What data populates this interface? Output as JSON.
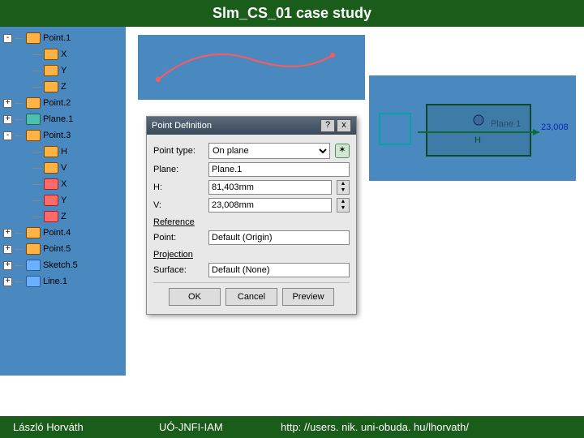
{
  "header": {
    "title": "Slm_CS_01 case study"
  },
  "footer": {
    "author": "László Horváth",
    "org": "UÓ-JNFI-IAM",
    "url": "http: //users. nik. uni-obuda. hu/lhorvath/"
  },
  "tree": {
    "background": "#4a89c0",
    "items": [
      {
        "exp": "-",
        "icon": "orange",
        "label": "Point.1",
        "indent": 0,
        "name": "node-point1"
      },
      {
        "exp": "",
        "icon": "orange",
        "label": "X",
        "indent": 1,
        "name": "node-x"
      },
      {
        "exp": "",
        "icon": "orange",
        "label": "Y",
        "indent": 1,
        "name": "node-y"
      },
      {
        "exp": "",
        "icon": "orange",
        "label": "Z",
        "indent": 1,
        "name": "node-z"
      },
      {
        "exp": "+",
        "icon": "orange",
        "label": "Point.2",
        "indent": 0,
        "name": "node-point2"
      },
      {
        "exp": "+",
        "icon": "teal",
        "label": "Plane.1",
        "indent": 0,
        "name": "node-plane1"
      },
      {
        "exp": "-",
        "icon": "orange",
        "label": "Point.3",
        "indent": 0,
        "name": "node-point3"
      },
      {
        "exp": "",
        "icon": "orange",
        "label": "H",
        "indent": 1,
        "name": "node-h"
      },
      {
        "exp": "",
        "icon": "orange",
        "label": "V",
        "indent": 1,
        "name": "node-v"
      },
      {
        "exp": "",
        "icon": "red",
        "label": "X",
        "indent": 1,
        "name": "node-x2"
      },
      {
        "exp": "",
        "icon": "red",
        "label": "Y",
        "indent": 1,
        "name": "node-y2"
      },
      {
        "exp": "",
        "icon": "red",
        "label": "Z",
        "indent": 1,
        "name": "node-z2"
      },
      {
        "exp": "+",
        "icon": "orange",
        "label": "Point.4",
        "indent": 0,
        "name": "node-point4"
      },
      {
        "exp": "+",
        "icon": "orange",
        "label": "Point.5",
        "indent": 0,
        "name": "node-point5"
      },
      {
        "exp": "+",
        "icon": "blue",
        "label": "Sketch.5",
        "indent": 0,
        "name": "node-sketch5"
      },
      {
        "exp": "+",
        "icon": "blue",
        "label": "Line.1",
        "indent": 0,
        "name": "node-line1"
      }
    ]
  },
  "viewport": {
    "background": "#4a89c0",
    "spline_color": "#ff5a5a",
    "plane_label": "Plane 1",
    "h_label": "H",
    "h_color": "#0a6a3a",
    "dim_value": "23,008",
    "dim_color": "#0a2aaa",
    "plane_box_color": "#0a4a2a",
    "axis_color": "#0aa0aa"
  },
  "dialog": {
    "title": "Point Definition",
    "help": "?",
    "close": "x",
    "type_label": "Point type:",
    "type_value": "On plane",
    "type_options": [
      "On plane"
    ],
    "plane_label": "Plane:",
    "plane_value": "Plane.1",
    "h_label": "H:",
    "h_value": "81,403mm",
    "v_label": "V:",
    "v_value": "23,008mm",
    "ref_section": "Reference",
    "point_label": "Point:",
    "point_value": "Default (Origin)",
    "proj_section": "Projection",
    "surface_label": "Surface:",
    "surface_value": "Default (None)",
    "buttons": {
      "ok": "OK",
      "cancel": "Cancel",
      "preview": "Preview"
    }
  }
}
